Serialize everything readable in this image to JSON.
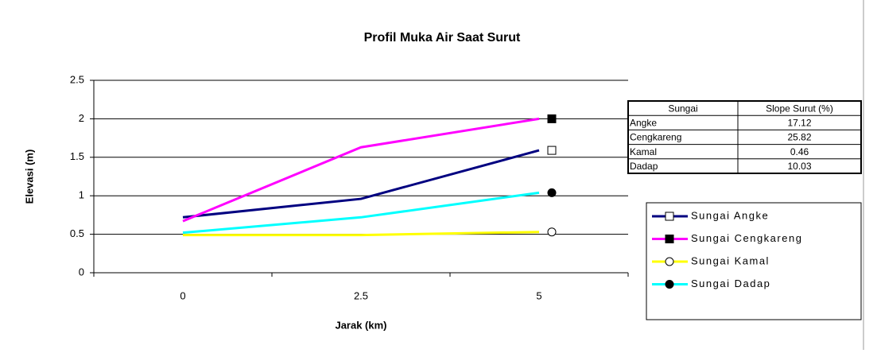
{
  "chart_data": {
    "type": "line",
    "title": "Profil Muka Air Saat Surut",
    "x_label": "Jarak (km)",
    "y_label": "Elevasi (m)",
    "categories": [
      "0",
      "2.5",
      "5"
    ],
    "series": [
      {
        "name": "Sungai Angke",
        "color": "#000080",
        "marker": "square-open",
        "values": [
          0.72,
          0.96,
          1.59
        ]
      },
      {
        "name": "Sungai Cengkareng",
        "color": "#ff00ff",
        "marker": "square",
        "values": [
          0.67,
          1.63,
          2.0
        ]
      },
      {
        "name": "Sungai Kamal",
        "color": "#ffff00",
        "marker": "circle-open",
        "values": [
          0.49,
          0.49,
          0.53
        ]
      },
      {
        "name": "Sungai Dadap",
        "color": "#00ffff",
        "marker": "circle",
        "values": [
          0.52,
          0.72,
          1.04
        ]
      }
    ],
    "ylim": [
      0,
      2.5
    ],
    "yticks": [
      0,
      0.5,
      1,
      1.5,
      2,
      2.5
    ],
    "grid": true,
    "legend": "right",
    "table": {
      "columns": [
        "Sungai",
        "Slope Surut (%)"
      ],
      "rows": [
        [
          "Angke",
          17.12
        ],
        [
          "Cengkareng",
          25.82
        ],
        [
          "Kamal",
          0.46
        ],
        [
          "Dadap",
          10.03
        ]
      ]
    }
  }
}
